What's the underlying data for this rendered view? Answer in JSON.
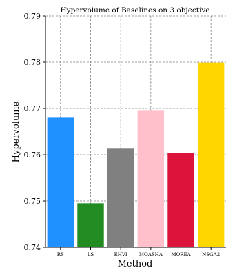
{
  "chart_data": {
    "type": "bar",
    "title": "Hypervolume of Baselines on 3 objective",
    "xlabel": "Method",
    "ylabel": "Hypervolume",
    "categories": [
      "RS",
      "LS",
      "EHVI",
      "MOASHA",
      "MOREA",
      "NSGA2"
    ],
    "values": [
      0.768,
      0.7495,
      0.7613,
      0.7695,
      0.7603,
      0.7799
    ],
    "colors": [
      "#1E90FF",
      "#228B22",
      "#808080",
      "#FFC0CB",
      "#DC143C",
      "#FFD700"
    ],
    "ylim": [
      0.74,
      0.79
    ],
    "yticks": [
      "0.74",
      "0.75",
      "0.76",
      "0.77",
      "0.78",
      "0.79"
    ],
    "grid": true,
    "grid_style": "dashed"
  }
}
